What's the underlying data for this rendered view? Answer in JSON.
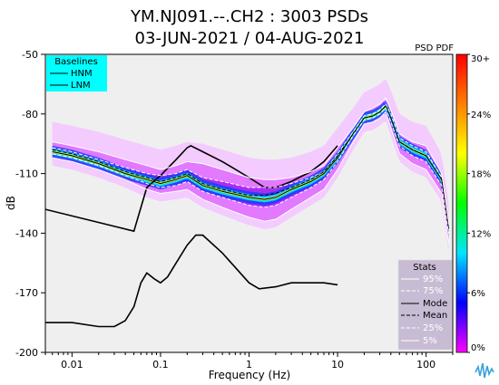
{
  "title_line1": "YM.NJ091.--.CH2 : 3003 PSDs",
  "title_line2": "03-JUN-2021 / 04-AUG-2021",
  "colorbar_title": "PSD PDF",
  "chart_data": {
    "type": "heatmap",
    "xlabel": "Frequency (Hz)",
    "ylabel": "dB",
    "xscale": "log",
    "xlim": [
      0.005,
      200
    ],
    "ylim": [
      -200,
      -50
    ],
    "x_ticks": [
      {
        "value": 0.01,
        "label": "0.01"
      },
      {
        "value": 0.1,
        "label": "0.1"
      },
      {
        "value": 1,
        "label": "1"
      },
      {
        "value": 10,
        "label": "10"
      },
      {
        "value": 100,
        "label": "100"
      }
    ],
    "y_ticks": [
      -50,
      -80,
      -110,
      -140,
      -170,
      -200
    ],
    "colorbar": {
      "label": "PSD PDF",
      "ticks": [
        "30+",
        "24%",
        "18%",
        "12%",
        "6%",
        "0%"
      ],
      "stops": [
        "#ff00ff",
        "#0000ff",
        "#00e5ff",
        "#00ff00",
        "#ffff00",
        "#ff7f00",
        "#ff0000"
      ]
    },
    "background_color": "#efefef",
    "baselines_legend": {
      "title": "Baselines",
      "items": [
        "HNM",
        "LNM"
      ],
      "background": "#00ffff"
    },
    "stats_legend": {
      "title": "Stats",
      "items": [
        "95%",
        "75%",
        "Mode",
        "Mean",
        "25%",
        "5%"
      ],
      "background": "#c8bcd4"
    },
    "series": [
      {
        "name": "HNM",
        "points": [
          [
            0.005,
            -128
          ],
          [
            0.05,
            -139
          ],
          [
            0.07,
            -117
          ],
          [
            0.1,
            -111
          ],
          [
            0.15,
            -103
          ],
          [
            0.2,
            -97
          ],
          [
            0.22,
            -96
          ],
          [
            0.3,
            -99
          ],
          [
            0.5,
            -104
          ],
          [
            1,
            -112
          ],
          [
            1.5,
            -117
          ],
          [
            2,
            -117
          ],
          [
            3,
            -114
          ],
          [
            5,
            -109
          ],
          [
            7,
            -104
          ],
          [
            10,
            -96
          ]
        ]
      },
      {
        "name": "LNM",
        "points": [
          [
            0.005,
            -185
          ],
          [
            0.01,
            -185
          ],
          [
            0.02,
            -187
          ],
          [
            0.03,
            -187
          ],
          [
            0.04,
            -184
          ],
          [
            0.05,
            -177
          ],
          [
            0.06,
            -165
          ],
          [
            0.07,
            -160
          ],
          [
            0.085,
            -163
          ],
          [
            0.1,
            -165
          ],
          [
            0.12,
            -162
          ],
          [
            0.15,
            -155
          ],
          [
            0.2,
            -146
          ],
          [
            0.25,
            -141
          ],
          [
            0.3,
            -141
          ],
          [
            0.5,
            -150
          ],
          [
            1,
            -165
          ],
          [
            1.3,
            -168
          ],
          [
            2,
            -167
          ],
          [
            3,
            -165
          ],
          [
            5,
            -165
          ],
          [
            7,
            -165
          ],
          [
            10,
            -166
          ]
        ]
      },
      {
        "name": "95%",
        "points": [
          [
            0.006,
            -94
          ],
          [
            0.01,
            -96
          ],
          [
            0.02,
            -99
          ],
          [
            0.04,
            -103
          ],
          [
            0.07,
            -106
          ],
          [
            0.1,
            -108
          ],
          [
            0.15,
            -106
          ],
          [
            0.2,
            -104
          ],
          [
            0.3,
            -105
          ],
          [
            0.5,
            -108
          ],
          [
            1,
            -112
          ],
          [
            1.5,
            -113
          ],
          [
            2,
            -113
          ],
          [
            3,
            -112
          ],
          [
            5,
            -109
          ],
          [
            7,
            -106
          ],
          [
            10,
            -97
          ],
          [
            15,
            -87
          ],
          [
            20,
            -79
          ],
          [
            25,
            -77
          ],
          [
            30,
            -75
          ],
          [
            35,
            -72
          ],
          [
            40,
            -78
          ],
          [
            50,
            -90
          ],
          [
            70,
            -94
          ],
          [
            100,
            -96
          ],
          [
            150,
            -110
          ],
          [
            180,
            -135
          ]
        ]
      },
      {
        "name": "75%",
        "points": [
          [
            0.006,
            -97
          ],
          [
            0.01,
            -99
          ],
          [
            0.02,
            -103
          ],
          [
            0.04,
            -107
          ],
          [
            0.07,
            -110
          ],
          [
            0.1,
            -111
          ],
          [
            0.15,
            -110
          ],
          [
            0.2,
            -108
          ],
          [
            0.3,
            -112
          ],
          [
            0.5,
            -114
          ],
          [
            1,
            -117
          ],
          [
            1.5,
            -117
          ],
          [
            2,
            -117
          ],
          [
            3,
            -115
          ],
          [
            5,
            -112
          ],
          [
            7,
            -109
          ],
          [
            10,
            -100
          ],
          [
            15,
            -89
          ],
          [
            20,
            -81
          ],
          [
            25,
            -80
          ],
          [
            30,
            -78
          ],
          [
            35,
            -75
          ],
          [
            40,
            -80
          ],
          [
            50,
            -92
          ],
          [
            70,
            -96
          ],
          [
            100,
            -99
          ],
          [
            150,
            -112
          ],
          [
            180,
            -137
          ]
        ]
      },
      {
        "name": "Mode",
        "points": [
          [
            0.006,
            -99
          ],
          [
            0.01,
            -101
          ],
          [
            0.02,
            -105
          ],
          [
            0.04,
            -110
          ],
          [
            0.07,
            -113
          ],
          [
            0.1,
            -115
          ],
          [
            0.15,
            -113
          ],
          [
            0.2,
            -111
          ],
          [
            0.3,
            -116
          ],
          [
            0.5,
            -119
          ],
          [
            1,
            -122
          ],
          [
            1.5,
            -123
          ],
          [
            2,
            -122
          ],
          [
            3,
            -118
          ],
          [
            5,
            -114
          ],
          [
            7,
            -110
          ],
          [
            10,
            -102
          ],
          [
            15,
            -90
          ],
          [
            20,
            -82
          ],
          [
            25,
            -81
          ],
          [
            30,
            -79
          ],
          [
            35,
            -76
          ],
          [
            40,
            -82
          ],
          [
            50,
            -94
          ],
          [
            70,
            -98
          ],
          [
            100,
            -101
          ],
          [
            150,
            -113
          ],
          [
            180,
            -138
          ]
        ]
      },
      {
        "name": "Mean",
        "points": [
          [
            0.006,
            -98
          ],
          [
            0.01,
            -100
          ],
          [
            0.02,
            -104
          ],
          [
            0.04,
            -109
          ],
          [
            0.07,
            -112
          ],
          [
            0.1,
            -114
          ],
          [
            0.15,
            -112
          ],
          [
            0.2,
            -110
          ],
          [
            0.3,
            -115
          ],
          [
            0.5,
            -118
          ],
          [
            1,
            -121
          ],
          [
            1.5,
            -121
          ],
          [
            2,
            -120
          ],
          [
            3,
            -117
          ],
          [
            5,
            -113
          ],
          [
            7,
            -109
          ],
          [
            10,
            -101
          ],
          [
            15,
            -90
          ],
          [
            20,
            -82
          ],
          [
            25,
            -81
          ],
          [
            30,
            -79
          ],
          [
            35,
            -76
          ],
          [
            40,
            -82
          ],
          [
            50,
            -94
          ],
          [
            70,
            -98
          ],
          [
            100,
            -101
          ],
          [
            150,
            -113
          ],
          [
            180,
            -138
          ]
        ]
      },
      {
        "name": "25%",
        "points": [
          [
            0.006,
            -100
          ],
          [
            0.01,
            -102
          ],
          [
            0.02,
            -106
          ],
          [
            0.04,
            -111
          ],
          [
            0.07,
            -115
          ],
          [
            0.1,
            -117
          ],
          [
            0.15,
            -116
          ],
          [
            0.2,
            -114
          ],
          [
            0.3,
            -119
          ],
          [
            0.5,
            -122
          ],
          [
            1,
            -126
          ],
          [
            1.5,
            -127
          ],
          [
            2,
            -126
          ],
          [
            3,
            -122
          ],
          [
            5,
            -117
          ],
          [
            7,
            -113
          ],
          [
            10,
            -104
          ],
          [
            15,
            -91
          ],
          [
            20,
            -83
          ],
          [
            25,
            -82
          ],
          [
            30,
            -80
          ],
          [
            35,
            -77
          ],
          [
            40,
            -84
          ],
          [
            50,
            -96
          ],
          [
            70,
            -101
          ],
          [
            100,
            -104
          ],
          [
            150,
            -116
          ],
          [
            180,
            -140
          ]
        ]
      },
      {
        "name": "5%",
        "points": [
          [
            0.006,
            -102
          ],
          [
            0.01,
            -104
          ],
          [
            0.02,
            -108
          ],
          [
            0.04,
            -113
          ],
          [
            0.07,
            -118
          ],
          [
            0.1,
            -120
          ],
          [
            0.15,
            -119
          ],
          [
            0.2,
            -118
          ],
          [
            0.3,
            -123
          ],
          [
            0.5,
            -127
          ],
          [
            1,
            -132
          ],
          [
            1.5,
            -134
          ],
          [
            2,
            -133
          ],
          [
            3,
            -128
          ],
          [
            5,
            -122
          ],
          [
            7,
            -118
          ],
          [
            10,
            -108
          ],
          [
            15,
            -94
          ],
          [
            20,
            -85
          ],
          [
            25,
            -84
          ],
          [
            30,
            -82
          ],
          [
            35,
            -79
          ],
          [
            40,
            -87
          ],
          [
            50,
            -100
          ],
          [
            70,
            -105
          ],
          [
            100,
            -108
          ],
          [
            150,
            -120
          ],
          [
            180,
            -145
          ]
        ]
      }
    ]
  }
}
